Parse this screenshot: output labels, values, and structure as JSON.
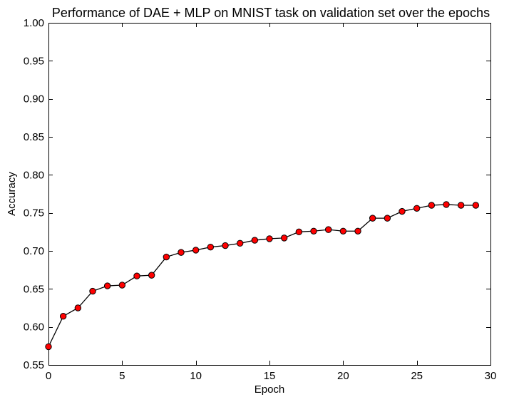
{
  "chart_data": {
    "type": "line",
    "title": "Performance of DAE + MLP on MNIST task on validation set over the epochs",
    "xlabel": "Epoch",
    "ylabel": "Accuracy",
    "xlim": [
      0,
      30
    ],
    "ylim": [
      0.55,
      1.0
    ],
    "xticks": [
      0,
      5,
      10,
      15,
      20,
      25,
      30
    ],
    "xtick_labels": [
      "0",
      "5",
      "10",
      "15",
      "20",
      "25",
      "30"
    ],
    "yticks": [
      0.55,
      0.6,
      0.65,
      0.7,
      0.75,
      0.8,
      0.85,
      0.9,
      0.95,
      1.0
    ],
    "ytick_labels": [
      "0.55",
      "0.60",
      "0.65",
      "0.70",
      "0.75",
      "0.80",
      "0.85",
      "0.90",
      "0.95",
      "1.00"
    ],
    "grid": false,
    "legend": "none",
    "series": [
      {
        "line_color": "#000000",
        "marker": "circle",
        "marker_color": "#ff0000",
        "marker_edge_color": "#000000",
        "x": [
          0,
          1,
          2,
          3,
          4,
          5,
          6,
          7,
          8,
          9,
          10,
          11,
          12,
          13,
          14,
          15,
          16,
          17,
          18,
          19,
          20,
          21,
          22,
          23,
          24,
          25,
          26,
          27,
          28,
          29
        ],
        "y": [
          0.574,
          0.614,
          0.625,
          0.647,
          0.654,
          0.655,
          0.667,
          0.668,
          0.692,
          0.698,
          0.701,
          0.705,
          0.707,
          0.71,
          0.714,
          0.716,
          0.717,
          0.725,
          0.726,
          0.728,
          0.726,
          0.726,
          0.743,
          0.743,
          0.752,
          0.756,
          0.76,
          0.761,
          0.76,
          0.76
        ]
      }
    ]
  }
}
